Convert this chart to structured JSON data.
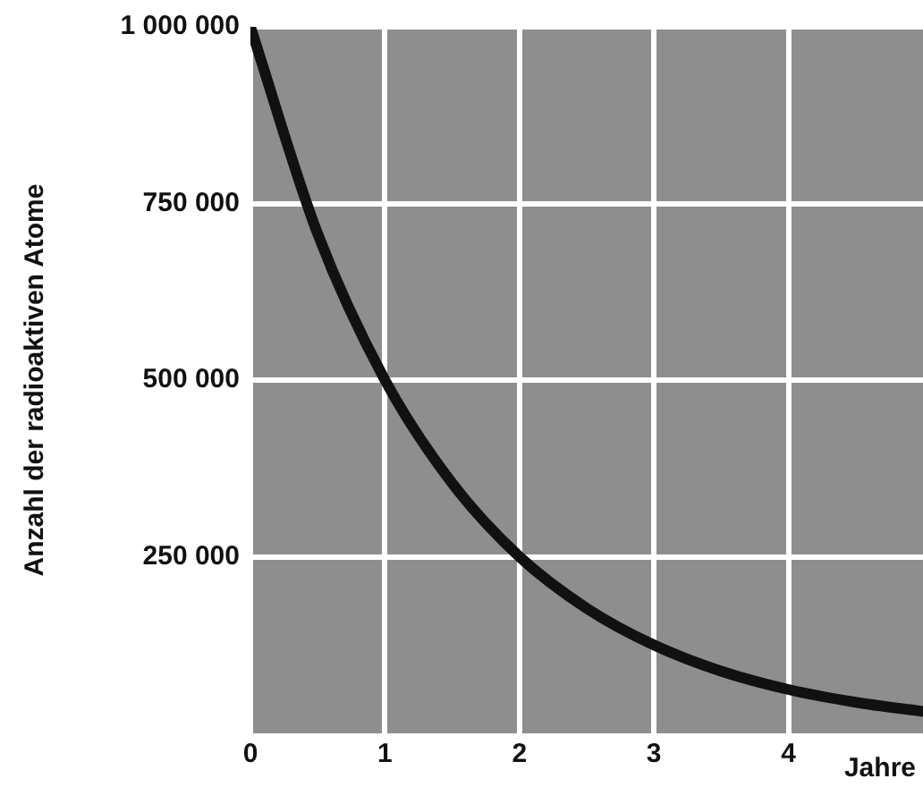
{
  "chart_data": {
    "type": "line",
    "ylabel": "Anzahl der radioaktiven Atome",
    "xlabel": "Jahre",
    "x": [
      0,
      0.5,
      1,
      1.5,
      2,
      2.5,
      3,
      3.5,
      4,
      4.5,
      5
    ],
    "series": [
      {
        "color": "#111111",
        "values": [
          1000000,
          707000,
          500000,
          354000,
          250000,
          177000,
          125000,
          88000,
          62000,
          44000,
          31000
        ]
      }
    ],
    "xlim": [
      0,
      5
    ],
    "xticks": [
      0,
      1,
      2,
      3,
      4
    ],
    "ylim": [
      0,
      1000000
    ],
    "yticks": [
      {
        "value": 250000,
        "label": "250 000"
      },
      {
        "value": 500000,
        "label": "500 000"
      },
      {
        "value": 750000,
        "label": "750 000"
      },
      {
        "value": 1000000,
        "label": "1 000 000"
      }
    ],
    "grid": true,
    "legend": false,
    "marker": "none",
    "line_style": "solid"
  }
}
